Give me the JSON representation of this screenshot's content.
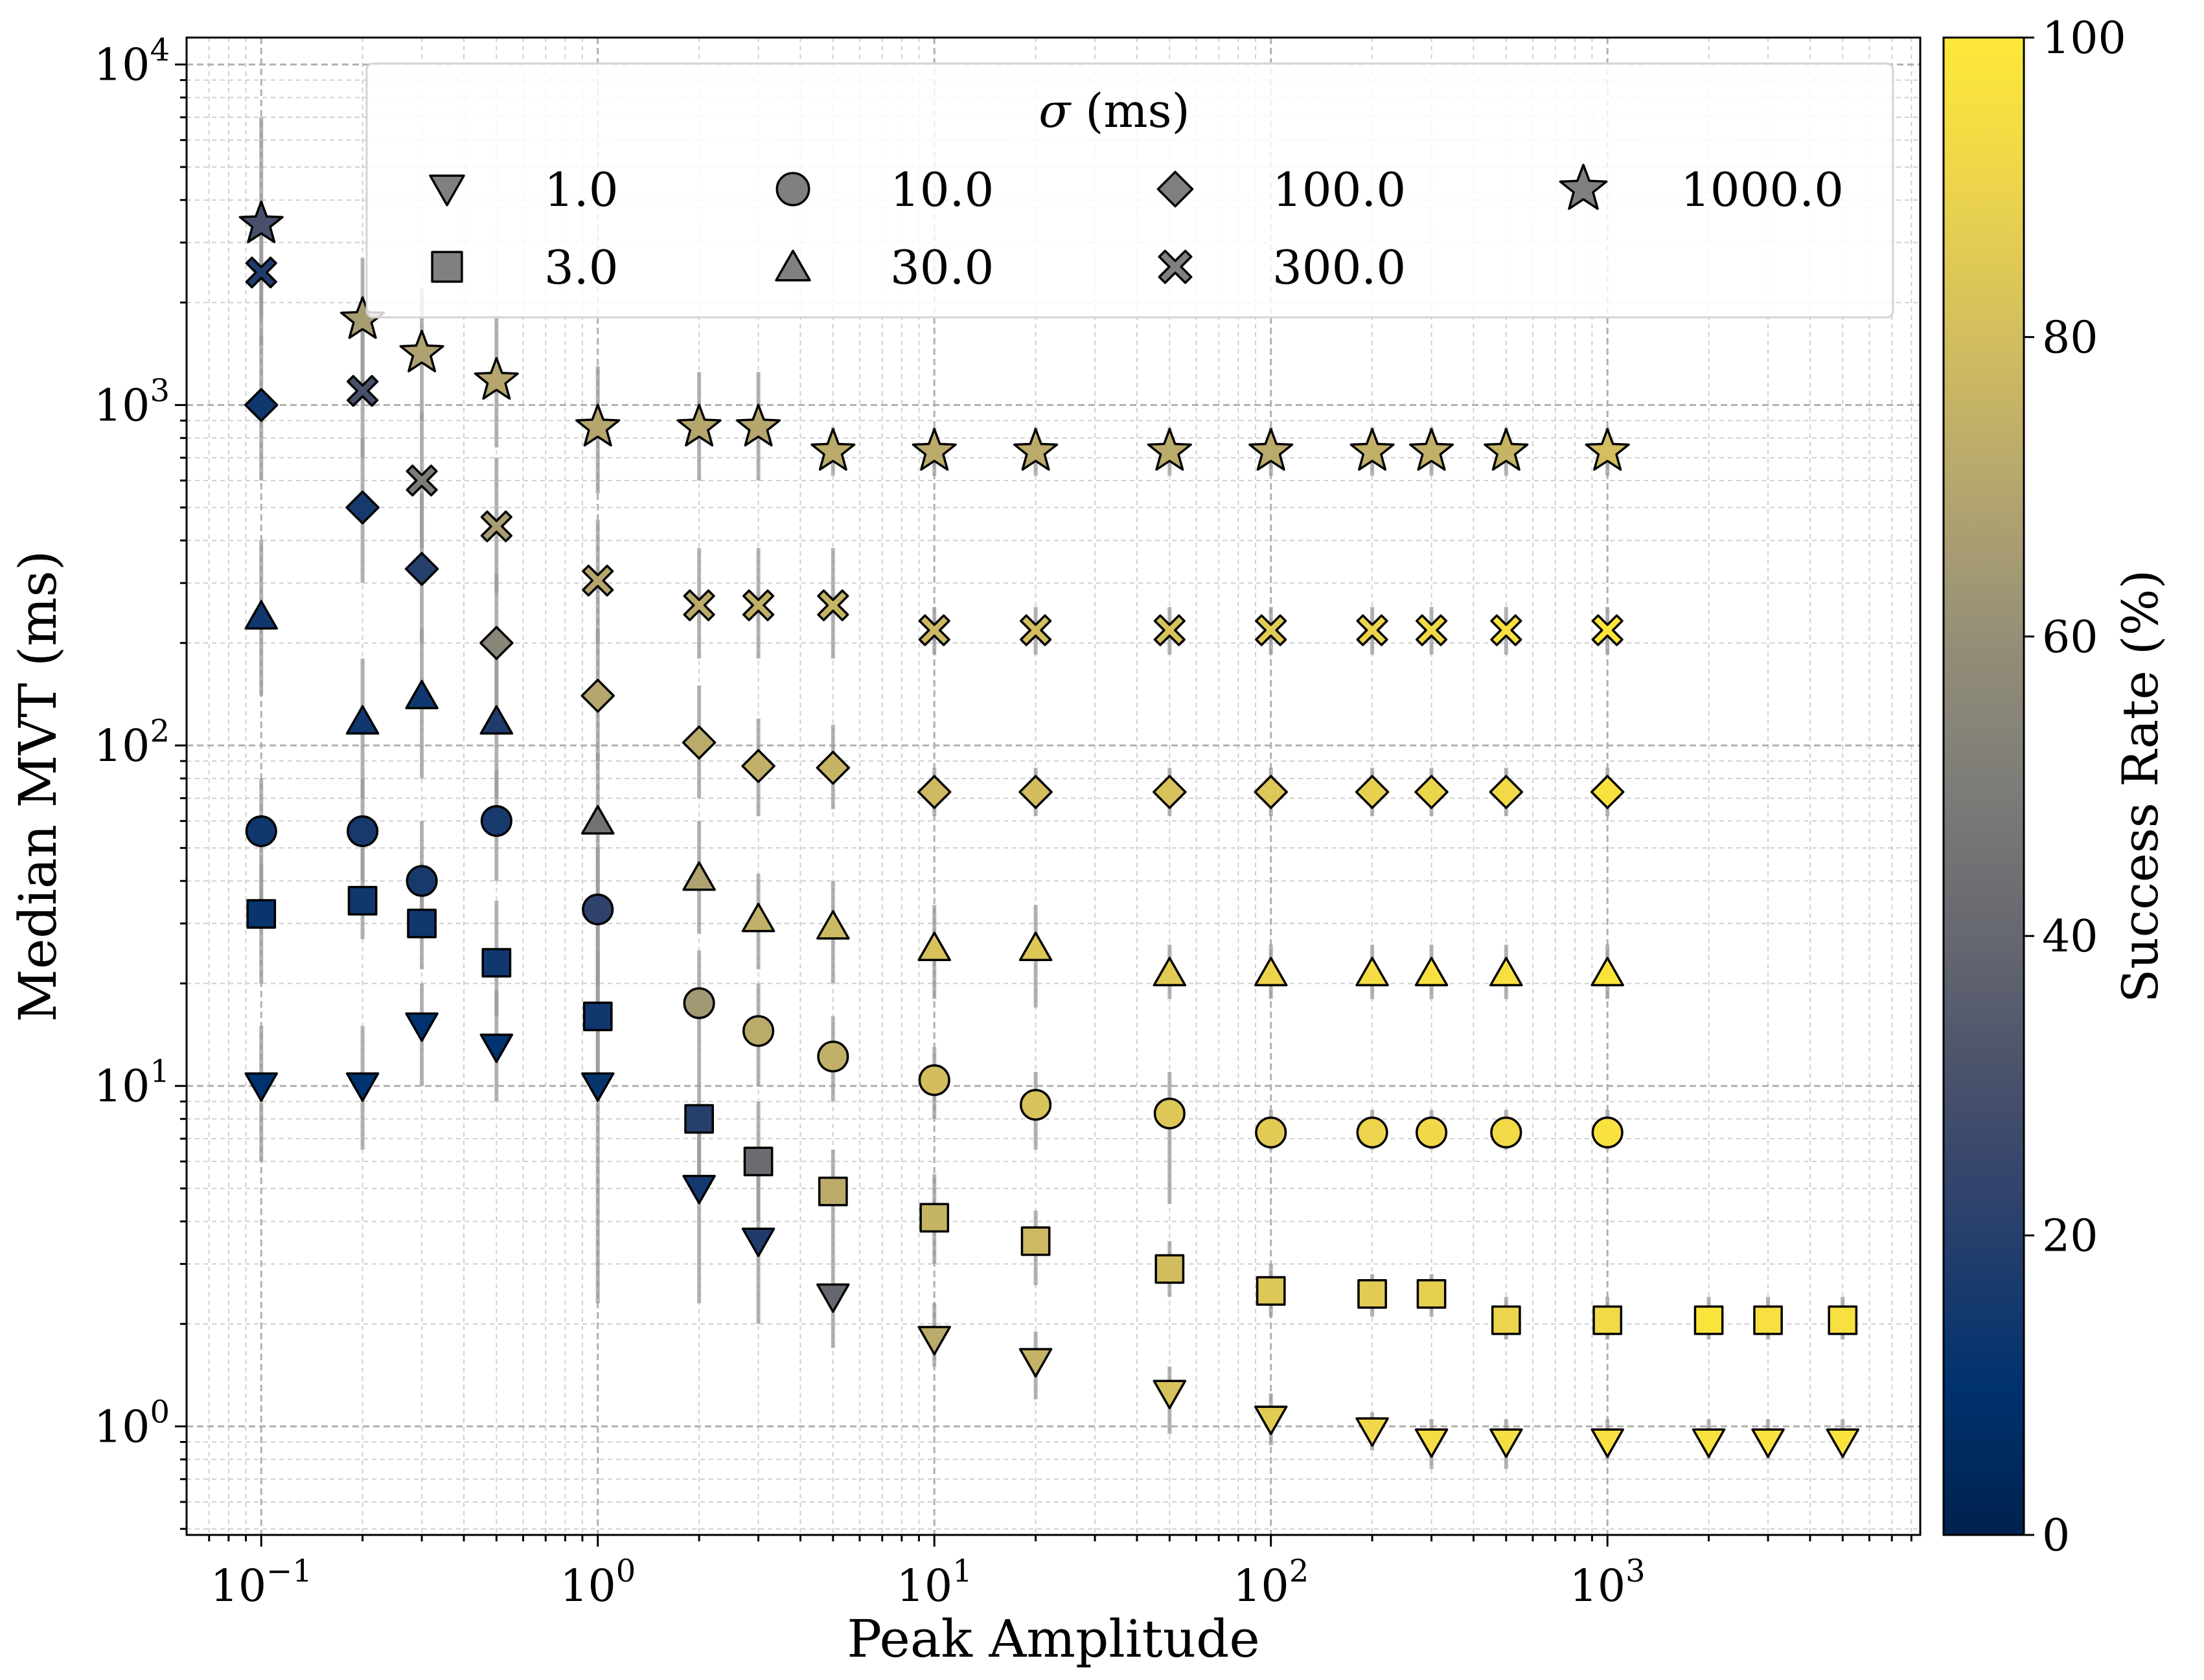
{
  "chart_data": {
    "type": "scatter",
    "xscale": "log",
    "yscale": "log",
    "xlabel": "Peak Amplitude",
    "ylabel": "Median MVT (ms)",
    "xlim": [
      0.06,
      8500
    ],
    "ylim": [
      0.48,
      12000
    ],
    "xticks": [
      0.1,
      1,
      10,
      100,
      1000
    ],
    "yticks": [
      1,
      10,
      100,
      1000,
      10000
    ],
    "grid": true,
    "legend": {
      "title_symbol": "σ",
      "title_unit": " (ms)",
      "position": "top-right",
      "entries": [
        {
          "label": "1.0",
          "marker": "triangle-down"
        },
        {
          "label": "3.0",
          "marker": "square"
        },
        {
          "label": "10.0",
          "marker": "circle"
        },
        {
          "label": "30.0",
          "marker": "triangle-up"
        },
        {
          "label": "100.0",
          "marker": "diamond"
        },
        {
          "label": "300.0",
          "marker": "x-filled"
        },
        {
          "label": "1000.0",
          "marker": "star"
        }
      ]
    },
    "colorbar": {
      "label": "Success Rate (%)",
      "min": 0,
      "max": 100,
      "ticks": [
        0,
        20,
        40,
        60,
        80,
        100
      ],
      "colormap": "cividis"
    },
    "series": [
      {
        "name": "1.0",
        "marker": "triangle-down",
        "points": [
          {
            "x": 0.1,
            "y": 10,
            "lo": 6,
            "hi": 15,
            "success": 10
          },
          {
            "x": 0.2,
            "y": 10,
            "lo": 6.5,
            "hi": 15,
            "success": 10
          },
          {
            "x": 0.3,
            "y": 15,
            "lo": 10,
            "hi": 20,
            "success": 10
          },
          {
            "x": 0.5,
            "y": 13,
            "lo": 9,
            "hi": 19,
            "success": 10
          },
          {
            "x": 1,
            "y": 10,
            "lo": 2.3,
            "hi": 30,
            "success": 12
          },
          {
            "x": 2,
            "y": 5,
            "lo": 2.3,
            "hi": 8,
            "success": 15
          },
          {
            "x": 3,
            "y": 3.5,
            "lo": 2,
            "hi": 6,
            "success": 18
          },
          {
            "x": 5,
            "y": 2.4,
            "lo": 1.7,
            "hi": 3.5,
            "success": 40
          },
          {
            "x": 10,
            "y": 1.8,
            "lo": 1.5,
            "hi": 2.3,
            "success": 72
          },
          {
            "x": 20,
            "y": 1.55,
            "lo": 1.2,
            "hi": 1.9,
            "success": 75
          },
          {
            "x": 50,
            "y": 1.25,
            "lo": 0.95,
            "hi": 1.5,
            "success": 82
          },
          {
            "x": 100,
            "y": 1.05,
            "lo": 0.88,
            "hi": 1.25,
            "success": 86
          },
          {
            "x": 200,
            "y": 0.97,
            "lo": 0.85,
            "hi": 1.1,
            "success": 92
          },
          {
            "x": 300,
            "y": 0.9,
            "lo": 0.75,
            "hi": 1.05,
            "success": 94
          },
          {
            "x": 500,
            "y": 0.9,
            "lo": 0.75,
            "hi": 1.05,
            "success": 95
          },
          {
            "x": 1000,
            "y": 0.9,
            "lo": 0.8,
            "hi": 1.05,
            "success": 96
          },
          {
            "x": 2000,
            "y": 0.9,
            "lo": 0.8,
            "hi": 1.05,
            "success": 97
          },
          {
            "x": 3000,
            "y": 0.9,
            "lo": 0.8,
            "hi": 1.05,
            "success": 97
          },
          {
            "x": 5000,
            "y": 0.9,
            "lo": 0.8,
            "hi": 1.05,
            "success": 97
          }
        ]
      },
      {
        "name": "3.0",
        "marker": "square",
        "points": [
          {
            "x": 0.1,
            "y": 32,
            "lo": 20,
            "hi": 45,
            "success": 12
          },
          {
            "x": 0.2,
            "y": 35,
            "lo": 27,
            "hi": 50,
            "success": 14
          },
          {
            "x": 0.3,
            "y": 30,
            "lo": 22,
            "hi": 45,
            "success": 14
          },
          {
            "x": 0.5,
            "y": 23,
            "lo": 16,
            "hi": 35,
            "success": 14
          },
          {
            "x": 1,
            "y": 16,
            "lo": 9,
            "hi": 25,
            "success": 14
          },
          {
            "x": 2,
            "y": 8,
            "lo": 5.5,
            "hi": 12,
            "success": 20
          },
          {
            "x": 3,
            "y": 6,
            "lo": 4,
            "hi": 9,
            "success": 42
          },
          {
            "x": 5,
            "y": 4.9,
            "lo": 3.5,
            "hi": 6.5,
            "success": 72
          },
          {
            "x": 10,
            "y": 4.1,
            "lo": 3,
            "hi": 5.5,
            "success": 76
          },
          {
            "x": 20,
            "y": 3.5,
            "lo": 2.6,
            "hi": 4.3,
            "success": 78
          },
          {
            "x": 50,
            "y": 2.9,
            "lo": 2.4,
            "hi": 3.5,
            "success": 80
          },
          {
            "x": 100,
            "y": 2.5,
            "lo": 2.1,
            "hi": 3,
            "success": 84
          },
          {
            "x": 200,
            "y": 2.45,
            "lo": 2.1,
            "hi": 2.8,
            "success": 86
          },
          {
            "x": 300,
            "y": 2.45,
            "lo": 2.1,
            "hi": 2.8,
            "success": 88
          },
          {
            "x": 500,
            "y": 2.05,
            "lo": 1.8,
            "hi": 2.4,
            "success": 90
          },
          {
            "x": 1000,
            "y": 2.05,
            "lo": 1.8,
            "hi": 2.4,
            "success": 93
          },
          {
            "x": 2000,
            "y": 2.05,
            "lo": 1.8,
            "hi": 2.4,
            "success": 98
          },
          {
            "x": 3000,
            "y": 2.05,
            "lo": 1.8,
            "hi": 2.4,
            "success": 96
          },
          {
            "x": 5000,
            "y": 2.05,
            "lo": 1.8,
            "hi": 2.4,
            "success": 96
          }
        ]
      },
      {
        "name": "10.0",
        "marker": "circle",
        "points": [
          {
            "x": 0.1,
            "y": 56,
            "lo": 35,
            "hi": 80,
            "success": 14
          },
          {
            "x": 0.2,
            "y": 56,
            "lo": 40,
            "hi": 80,
            "success": 16
          },
          {
            "x": 0.3,
            "y": 40,
            "lo": 28,
            "hi": 60,
            "success": 16
          },
          {
            "x": 0.5,
            "y": 60,
            "lo": 40,
            "hi": 85,
            "success": 16
          },
          {
            "x": 1,
            "y": 33,
            "lo": 20,
            "hi": 50,
            "success": 22
          },
          {
            "x": 2,
            "y": 17.5,
            "lo": 12,
            "hi": 25,
            "success": 64
          },
          {
            "x": 3,
            "y": 14.5,
            "lo": 10,
            "hi": 20,
            "success": 72
          },
          {
            "x": 5,
            "y": 12.2,
            "lo": 9,
            "hi": 16,
            "success": 74
          },
          {
            "x": 10,
            "y": 10.4,
            "lo": 8,
            "hi": 13,
            "success": 80
          },
          {
            "x": 20,
            "y": 8.8,
            "lo": 6.5,
            "hi": 11,
            "success": 82
          },
          {
            "x": 50,
            "y": 8.3,
            "lo": 4.5,
            "hi": 11,
            "success": 84
          },
          {
            "x": 100,
            "y": 7.3,
            "lo": 6.5,
            "hi": 8.5,
            "success": 86
          },
          {
            "x": 200,
            "y": 7.3,
            "lo": 6.5,
            "hi": 8.5,
            "success": 90
          },
          {
            "x": 300,
            "y": 7.3,
            "lo": 6.5,
            "hi": 8.5,
            "success": 92
          },
          {
            "x": 500,
            "y": 7.3,
            "lo": 6.5,
            "hi": 8.5,
            "success": 93
          },
          {
            "x": 1000,
            "y": 7.3,
            "lo": 6.5,
            "hi": 8.5,
            "success": 97
          }
        ]
      },
      {
        "name": "30.0",
        "marker": "triangle-up",
        "points": [
          {
            "x": 0.1,
            "y": 240,
            "lo": 140,
            "hi": 400,
            "success": 14
          },
          {
            "x": 0.2,
            "y": 118,
            "lo": 70,
            "hi": 180,
            "success": 14
          },
          {
            "x": 0.3,
            "y": 140,
            "lo": 80,
            "hi": 220,
            "success": 14
          },
          {
            "x": 0.5,
            "y": 118,
            "lo": 70,
            "hi": 180,
            "success": 18
          },
          {
            "x": 1,
            "y": 60,
            "lo": 35,
            "hi": 95,
            "success": 45
          },
          {
            "x": 2,
            "y": 41,
            "lo": 28,
            "hi": 60,
            "success": 68
          },
          {
            "x": 3,
            "y": 31,
            "lo": 22,
            "hi": 42,
            "success": 74
          },
          {
            "x": 5,
            "y": 29.5,
            "lo": 20,
            "hi": 40,
            "success": 78
          },
          {
            "x": 10,
            "y": 25.5,
            "lo": 18,
            "hi": 34,
            "success": 82
          },
          {
            "x": 20,
            "y": 25.5,
            "lo": 17,
            "hi": 34,
            "success": 84
          },
          {
            "x": 50,
            "y": 21.5,
            "lo": 18,
            "hi": 26,
            "success": 86
          },
          {
            "x": 100,
            "y": 21.5,
            "lo": 18,
            "hi": 26,
            "success": 90
          },
          {
            "x": 200,
            "y": 21.5,
            "lo": 18,
            "hi": 26,
            "success": 94
          },
          {
            "x": 300,
            "y": 21.5,
            "lo": 18,
            "hi": 26,
            "success": 96
          },
          {
            "x": 500,
            "y": 21.5,
            "lo": 18,
            "hi": 26,
            "success": 96
          },
          {
            "x": 1000,
            "y": 21.5,
            "lo": 18,
            "hi": 26,
            "success": 98
          }
        ]
      },
      {
        "name": "100.0",
        "marker": "diamond",
        "points": [
          {
            "x": 0.1,
            "y": 1000,
            "lo": 600,
            "hi": 1600,
            "success": 14
          },
          {
            "x": 0.2,
            "y": 500,
            "lo": 300,
            "hi": 800,
            "success": 16
          },
          {
            "x": 0.3,
            "y": 330,
            "lo": 200,
            "hi": 550,
            "success": 20
          },
          {
            "x": 0.5,
            "y": 200,
            "lo": 130,
            "hi": 320,
            "success": 55
          },
          {
            "x": 1,
            "y": 140,
            "lo": 90,
            "hi": 220,
            "success": 70
          },
          {
            "x": 2,
            "y": 102,
            "lo": 70,
            "hi": 150,
            "success": 72
          },
          {
            "x": 3,
            "y": 87,
            "lo": 62,
            "hi": 120,
            "success": 74
          },
          {
            "x": 5,
            "y": 86,
            "lo": 65,
            "hi": 115,
            "success": 76
          },
          {
            "x": 10,
            "y": 73,
            "lo": 62,
            "hi": 86,
            "success": 78
          },
          {
            "x": 20,
            "y": 73,
            "lo": 62,
            "hi": 86,
            "success": 80
          },
          {
            "x": 50,
            "y": 73,
            "lo": 62,
            "hi": 86,
            "success": 82
          },
          {
            "x": 100,
            "y": 73,
            "lo": 62,
            "hi": 86,
            "success": 84
          },
          {
            "x": 200,
            "y": 73,
            "lo": 62,
            "hi": 86,
            "success": 88
          },
          {
            "x": 300,
            "y": 73,
            "lo": 62,
            "hi": 86,
            "success": 90
          },
          {
            "x": 500,
            "y": 73,
            "lo": 62,
            "hi": 86,
            "success": 93
          },
          {
            "x": 1000,
            "y": 73,
            "lo": 62,
            "hi": 86,
            "success": 97
          }
        ]
      },
      {
        "name": "300.0",
        "marker": "x-filled",
        "points": [
          {
            "x": 0.1,
            "y": 2450,
            "lo": 1500,
            "hi": 3800,
            "success": 18
          },
          {
            "x": 0.2,
            "y": 1100,
            "lo": 700,
            "hi": 1700,
            "success": 30
          },
          {
            "x": 0.3,
            "y": 600,
            "lo": 380,
            "hi": 950,
            "success": 50
          },
          {
            "x": 0.5,
            "y": 440,
            "lo": 280,
            "hi": 700,
            "success": 66
          },
          {
            "x": 1,
            "y": 305,
            "lo": 200,
            "hi": 460,
            "success": 70
          },
          {
            "x": 2,
            "y": 258,
            "lo": 180,
            "hi": 380,
            "success": 72
          },
          {
            "x": 3,
            "y": 258,
            "lo": 180,
            "hi": 380,
            "success": 74
          },
          {
            "x": 5,
            "y": 258,
            "lo": 180,
            "hi": 380,
            "success": 76
          },
          {
            "x": 10,
            "y": 218,
            "lo": 185,
            "hi": 255,
            "success": 78
          },
          {
            "x": 20,
            "y": 218,
            "lo": 185,
            "hi": 255,
            "success": 80
          },
          {
            "x": 50,
            "y": 218,
            "lo": 185,
            "hi": 255,
            "success": 82
          },
          {
            "x": 100,
            "y": 218,
            "lo": 185,
            "hi": 255,
            "success": 86
          },
          {
            "x": 200,
            "y": 218,
            "lo": 185,
            "hi": 255,
            "success": 90
          },
          {
            "x": 300,
            "y": 218,
            "lo": 185,
            "hi": 255,
            "success": 92
          },
          {
            "x": 500,
            "y": 218,
            "lo": 185,
            "hi": 255,
            "success": 96
          },
          {
            "x": 1000,
            "y": 218,
            "lo": 185,
            "hi": 255,
            "success": 99
          }
        ]
      },
      {
        "name": "1000.0",
        "marker": "star",
        "points": [
          {
            "x": 0.1,
            "y": 3400,
            "lo": 1800,
            "hi": 7000,
            "success": 30
          },
          {
            "x": 0.2,
            "y": 1780,
            "lo": 1100,
            "hi": 2700,
            "success": 66
          },
          {
            "x": 0.3,
            "y": 1420,
            "lo": 900,
            "hi": 2200,
            "success": 68
          },
          {
            "x": 0.5,
            "y": 1180,
            "lo": 750,
            "hi": 1800,
            "success": 70
          },
          {
            "x": 1,
            "y": 860,
            "lo": 550,
            "hi": 1300,
            "success": 70
          },
          {
            "x": 2,
            "y": 860,
            "lo": 600,
            "hi": 1250,
            "success": 70
          },
          {
            "x": 3,
            "y": 860,
            "lo": 600,
            "hi": 1250,
            "success": 70
          },
          {
            "x": 5,
            "y": 730,
            "lo": 620,
            "hi": 860,
            "success": 72
          },
          {
            "x": 10,
            "y": 730,
            "lo": 620,
            "hi": 860,
            "success": 72
          },
          {
            "x": 20,
            "y": 730,
            "lo": 620,
            "hi": 860,
            "success": 72
          },
          {
            "x": 50,
            "y": 730,
            "lo": 620,
            "hi": 860,
            "success": 72
          },
          {
            "x": 100,
            "y": 730,
            "lo": 620,
            "hi": 860,
            "success": 72
          },
          {
            "x": 200,
            "y": 730,
            "lo": 620,
            "hi": 860,
            "success": 74
          },
          {
            "x": 300,
            "y": 730,
            "lo": 620,
            "hi": 860,
            "success": 74
          },
          {
            "x": 500,
            "y": 730,
            "lo": 620,
            "hi": 860,
            "success": 76
          },
          {
            "x": 1000,
            "y": 730,
            "lo": 620,
            "hi": 860,
            "success": 80
          }
        ]
      }
    ]
  }
}
